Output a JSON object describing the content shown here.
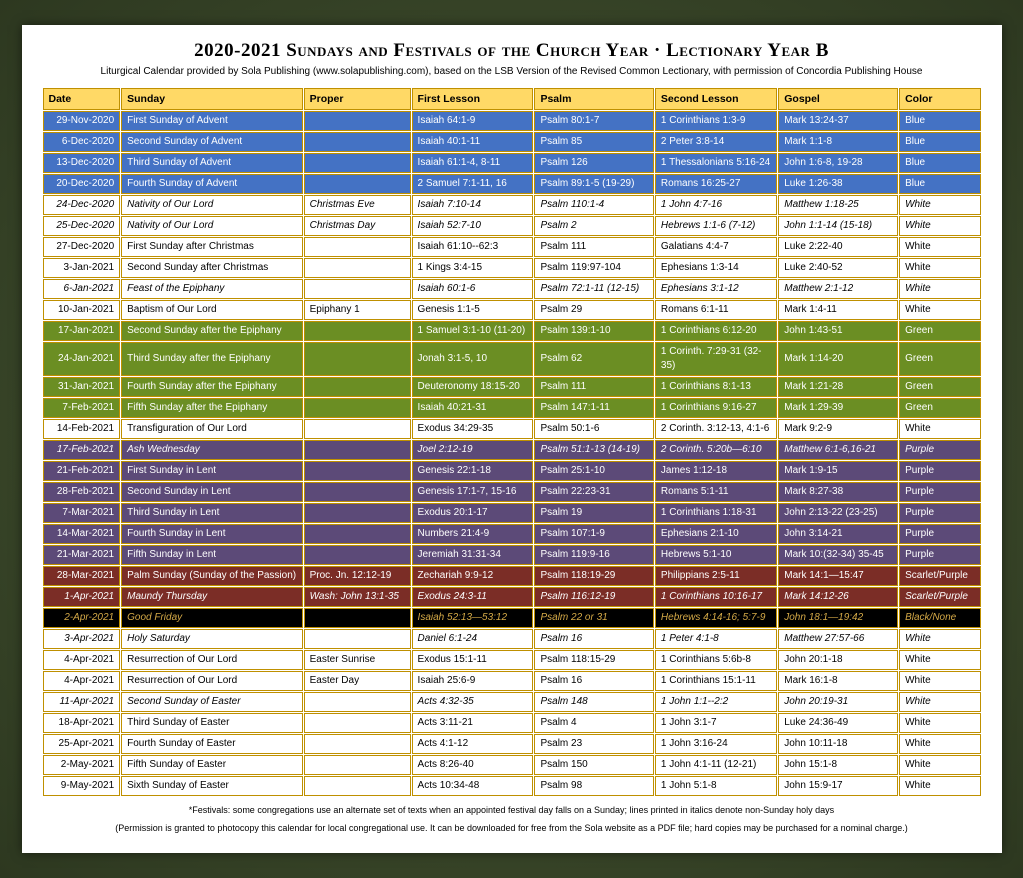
{
  "title": "2020-2021 Sundays and Festivals of the Church Year · Lectionary Year B",
  "subtitle": "Liturgical Calendar provided by Sola Publishing (www.solapublishing.com), based on the LSB Version of the Revised Common Lectionary, with permission of Concordia Publishing House",
  "headers": [
    "Date",
    "Sunday",
    "Proper",
    "First Lesson",
    "Psalm",
    "Second Lesson",
    "Gospel",
    "Color"
  ],
  "footnote1": "*Festivals: some congregations use an alternate set of texts when an appointed festival day falls on a Sunday; lines printed in italics denote non-Sunday holy days",
  "footnote2": "(Permission is granted to photocopy this calendar for local congregational use. It can be downloaded for free from the Sola website as a PDF file; hard copies may be purchased for a nominal charge.)",
  "row_colors": {
    "blue": {
      "bg": "#4472c4",
      "fg": "#ffffff"
    },
    "white": {
      "bg": "#ffffff",
      "fg": "#000000"
    },
    "green": {
      "bg": "#6b8e23",
      "fg": "#ffffff"
    },
    "purple": {
      "bg": "#5c4a78",
      "fg": "#ffffff"
    },
    "maroon": {
      "bg": "#7b2d26",
      "fg": "#ffffff"
    },
    "black": {
      "bg": "#000000",
      "fg": "#d4a947"
    }
  },
  "rows": [
    {
      "c": "blue",
      "italic": false,
      "d": "29-Nov-2020",
      "s": "First Sunday of Advent",
      "p": "",
      "l1": "Isaiah 64:1-9",
      "ps": "Psalm 80:1-7",
      "l2": "1 Corinthians 1:3-9",
      "g": "Mark 13:24-37",
      "col": "Blue"
    },
    {
      "c": "blue",
      "italic": false,
      "d": "6-Dec-2020",
      "s": "Second Sunday of Advent",
      "p": "",
      "l1": "Isaiah 40:1-11",
      "ps": "Psalm 85",
      "l2": "2  Peter 3:8-14",
      "g": "Mark 1:1-8",
      "col": "Blue"
    },
    {
      "c": "blue",
      "italic": false,
      "d": "13-Dec-2020",
      "s": "Third Sunday of Advent",
      "p": "",
      "l1": "Isaiah 61:1-4, 8-11",
      "ps": "Psalm 126",
      "l2": "1 Thessalonians 5:16-24",
      "g": "John 1:6-8, 19-28",
      "col": "Blue"
    },
    {
      "c": "blue",
      "italic": false,
      "d": "20-Dec-2020",
      "s": "Fourth Sunday of Advent",
      "p": "",
      "l1": "2 Samuel 7:1-11, 16",
      "ps": "Psalm 89:1-5 (19-29)",
      "l2": "Romans 16:25-27",
      "g": "Luke 1:26-38",
      "col": "Blue"
    },
    {
      "c": "white",
      "italic": true,
      "d": "24-Dec-2020",
      "s": "Nativity of Our Lord",
      "p": "Christmas Eve",
      "l1": "Isaiah 7:10-14",
      "ps": "Psalm 110:1-4",
      "l2": "1 John 4:7-16",
      "g": "Matthew 1:18-25",
      "col": "White"
    },
    {
      "c": "white",
      "italic": true,
      "d": "25-Dec-2020",
      "s": "Nativity of Our Lord",
      "p": "Christmas Day",
      "l1": "Isaiah 52:7-10",
      "ps": "Psalm 2",
      "l2": "Hebrews 1:1-6 (7-12)",
      "g": "John 1:1-14 (15-18)",
      "col": "White"
    },
    {
      "c": "white",
      "italic": false,
      "d": "27-Dec-2020",
      "s": "First Sunday after Christmas",
      "p": "",
      "l1": "Isaiah 61:10--62:3",
      "ps": "Psalm 111",
      "l2": "Galatians 4:4-7",
      "g": "Luke 2:22-40",
      "col": "White"
    },
    {
      "c": "white",
      "italic": false,
      "d": "3-Jan-2021",
      "s": "Second Sunday after Christmas",
      "p": "",
      "l1": "1 Kings 3:4-15",
      "ps": "Psalm 119:97-104",
      "l2": "Ephesians 1:3-14",
      "g": "Luke 2:40-52",
      "col": "White"
    },
    {
      "c": "white",
      "italic": true,
      "d": "6-Jan-2021",
      "s": "Feast of the Epiphany",
      "p": "",
      "l1": "Isaiah 60:1-6",
      "ps": "Psalm 72:1-11 (12-15)",
      "l2": "Ephesians 3:1-12",
      "g": "Matthew 2:1-12",
      "col": "White"
    },
    {
      "c": "white",
      "italic": false,
      "d": "10-Jan-2021",
      "s": "Baptism of Our Lord",
      "p": "Epiphany 1",
      "l1": "Genesis 1:1-5",
      "ps": "Psalm 29",
      "l2": "Romans 6:1-11",
      "g": "Mark 1:4-11",
      "col": "White"
    },
    {
      "c": "green",
      "italic": false,
      "d": "17-Jan-2021",
      "s": "Second Sunday after the Epiphany",
      "p": "",
      "l1": "1 Samuel 3:1-10 (11-20)",
      "ps": "Psalm 139:1-10",
      "l2": "1 Corinthians 6:12-20",
      "g": "John 1:43-51",
      "col": "Green"
    },
    {
      "c": "green",
      "italic": false,
      "d": "24-Jan-2021",
      "s": "Third Sunday after the Epiphany",
      "p": "",
      "l1": "Jonah 3:1-5, 10",
      "ps": "Psalm 62",
      "l2": "1 Corinth. 7:29-31 (32-35)",
      "g": "Mark 1:14-20",
      "col": "Green"
    },
    {
      "c": "green",
      "italic": false,
      "d": "31-Jan-2021",
      "s": "Fourth Sunday after the Epiphany",
      "p": "",
      "l1": "Deuteronomy 18:15-20",
      "ps": "Psalm 111",
      "l2": "1 Corinthians 8:1-13",
      "g": "Mark 1:21-28",
      "col": "Green"
    },
    {
      "c": "green",
      "italic": false,
      "d": "7-Feb-2021",
      "s": "Fifth Sunday after the Epiphany",
      "p": "",
      "l1": "Isaiah 40:21-31",
      "ps": "Psalm 147:1-11",
      "l2": "1 Corinthians 9:16-27",
      "g": "Mark 1:29-39",
      "col": "Green"
    },
    {
      "c": "white",
      "italic": false,
      "d": "14-Feb-2021",
      "s": "Transfiguration of Our Lord",
      "p": "",
      "l1": "Exodus 34:29-35",
      "ps": "Psalm 50:1-6",
      "l2": "2 Corinth. 3:12-13, 4:1-6",
      "g": "Mark 9:2-9",
      "col": "White"
    },
    {
      "c": "purple",
      "italic": true,
      "d": "17-Feb-2021",
      "s": "Ash Wednesday",
      "p": "",
      "l1": "Joel 2:12-19",
      "ps": "Psalm 51:1-13 (14-19)",
      "l2": "2 Corinth. 5:20b—6:10",
      "g": "Matthew 6:1-6,16-21",
      "col": "Purple"
    },
    {
      "c": "purple",
      "italic": false,
      "d": "21-Feb-2021",
      "s": "First Sunday in Lent",
      "p": "",
      "l1": "Genesis 22:1-18",
      "ps": "Psalm 25:1-10",
      "l2": "James 1:12-18",
      "g": "Mark 1:9-15",
      "col": "Purple"
    },
    {
      "c": "purple",
      "italic": false,
      "d": "28-Feb-2021",
      "s": "Second Sunday in Lent",
      "p": "",
      "l1": "Genesis 17:1-7, 15-16",
      "ps": "Psalm 22:23-31",
      "l2": "Romans 5:1-11",
      "g": "Mark 8:27-38",
      "col": "Purple"
    },
    {
      "c": "purple",
      "italic": false,
      "d": "7-Mar-2021",
      "s": "Third Sunday in Lent",
      "p": "",
      "l1": "Exodus 20:1-17",
      "ps": "Psalm 19",
      "l2": "1 Corinthians 1:18-31",
      "g": "John 2:13-22 (23-25)",
      "col": "Purple"
    },
    {
      "c": "purple",
      "italic": false,
      "d": "14-Mar-2021",
      "s": "Fourth Sunday in Lent",
      "p": "",
      "l1": "Numbers 21:4-9",
      "ps": "Psalm 107:1-9",
      "l2": "Ephesians 2:1-10",
      "g": "John 3:14-21",
      "col": "Purple"
    },
    {
      "c": "purple",
      "italic": false,
      "d": "21-Mar-2021",
      "s": "Fifth Sunday in Lent",
      "p": "",
      "l1": "Jeremiah 31:31-34",
      "ps": "Psalm 119:9-16",
      "l2": "Hebrews 5:1-10",
      "g": "Mark 10:(32-34) 35-45",
      "col": "Purple"
    },
    {
      "c": "maroon",
      "italic": false,
      "d": "28-Mar-2021",
      "s": "Palm Sunday (Sunday of the Passion)",
      "p": "Proc. Jn. 12:12-19",
      "l1": "Zechariah 9:9-12",
      "ps": "Psalm 118:19-29",
      "l2": "Philippians 2:5-11",
      "g": "Mark 14:1—15:47",
      "col": "Scarlet/Purple"
    },
    {
      "c": "maroon",
      "italic": true,
      "d": "1-Apr-2021",
      "s": "Maundy Thursday",
      "p": "Wash: John 13:1-35",
      "l1": "Exodus 24:3-11",
      "ps": "Psalm 116:12-19",
      "l2": "1 Corinthians 10:16-17",
      "g": "Mark 14:12-26",
      "col": "Scarlet/Purple"
    },
    {
      "c": "black",
      "italic": true,
      "d": "2-Apr-2021",
      "s": "Good Friday",
      "p": "",
      "l1": "Isaiah 52:13—53:12",
      "ps": "Psalm 22 or 31",
      "l2": "Hebrews 4:14-16; 5:7-9",
      "g": "John 18:1—19:42",
      "col": "Black/None"
    },
    {
      "c": "white",
      "italic": true,
      "d": "3-Apr-2021",
      "s": "Holy Saturday",
      "p": "",
      "l1": "Daniel 6:1-24",
      "ps": "Psalm 16",
      "l2": "1 Peter 4:1-8",
      "g": "Matthew 27:57-66",
      "col": "White"
    },
    {
      "c": "white",
      "italic": false,
      "d": "4-Apr-2021",
      "s": "Resurrection of Our Lord",
      "p": "Easter Sunrise",
      "l1": "Exodus 15:1-11",
      "ps": "Psalm 118:15-29",
      "l2": "1 Corinthians 5:6b-8",
      "g": "John 20:1-18",
      "col": "White"
    },
    {
      "c": "white",
      "italic": false,
      "d": "4-Apr-2021",
      "s": "Resurrection of Our Lord",
      "p": "Easter Day",
      "l1": "Isaiah 25:6-9",
      "ps": "Psalm 16",
      "l2": "1 Corinthians 15:1-11",
      "g": "Mark 16:1-8",
      "col": "White"
    },
    {
      "c": "white",
      "italic": true,
      "d": "11-Apr-2021",
      "s": "Second Sunday of Easter",
      "p": "",
      "l1": "Acts 4:32-35",
      "ps": "Psalm 148",
      "l2": "1 John 1:1--2:2",
      "g": "John 20:19-31",
      "col": "White"
    },
    {
      "c": "white",
      "italic": false,
      "d": "18-Apr-2021",
      "s": "Third Sunday of Easter",
      "p": "",
      "l1": "Acts 3:11-21",
      "ps": "Psalm 4",
      "l2": "1 John 3:1-7",
      "g": "Luke 24:36-49",
      "col": "White"
    },
    {
      "c": "white",
      "italic": false,
      "d": "25-Apr-2021",
      "s": "Fourth Sunday of Easter",
      "p": "",
      "l1": "Acts 4:1-12",
      "ps": "Psalm 23",
      "l2": "1 John 3:16-24",
      "g": "John 10:11-18",
      "col": "White"
    },
    {
      "c": "white",
      "italic": false,
      "d": "2-May-2021",
      "s": "Fifth Sunday of Easter",
      "p": "",
      "l1": "Acts 8:26-40",
      "ps": "Psalm 150",
      "l2": "1 John 4:1-11 (12-21)",
      "g": "John 15:1-8",
      "col": "White"
    },
    {
      "c": "white",
      "italic": false,
      "d": "9-May-2021",
      "s": "Sixth Sunday of Easter",
      "p": "",
      "l1": "Acts 10:34-48",
      "ps": "Psalm 98",
      "l2": "1 John 5:1-8",
      "g": "John 15:9-17",
      "col": "White"
    }
  ]
}
